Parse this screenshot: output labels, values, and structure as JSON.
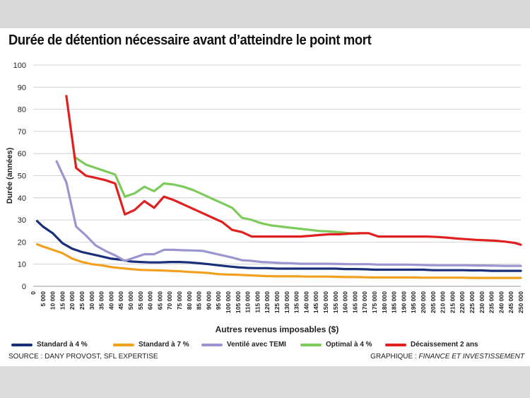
{
  "chart_data": {
    "type": "line",
    "title": "Durée de détention nécessaire avant d’atteindre le point mort",
    "xlabel": "Autres revenus imposables ($)",
    "ylabel": "Durée (années)",
    "ylim": [
      0,
      100
    ],
    "yticks": [
      0,
      10,
      20,
      30,
      40,
      50,
      60,
      70,
      80,
      90,
      100
    ],
    "xlim": [
      0,
      250000
    ],
    "xticks": [
      0,
      5000,
      10000,
      15000,
      20000,
      25000,
      30000,
      35000,
      40000,
      45000,
      50000,
      55000,
      60000,
      65000,
      70000,
      75000,
      80000,
      85000,
      90000,
      95000,
      100000,
      105000,
      110000,
      115000,
      120000,
      125000,
      130000,
      135000,
      140000,
      145000,
      150000,
      155000,
      160000,
      165000,
      170000,
      175000,
      180000,
      185000,
      190000,
      195000,
      200000,
      205000,
      210000,
      215000,
      220000,
      225000,
      230000,
      235000,
      240000,
      245000,
      250000
    ],
    "xtick_labels": [
      "0",
      "5 000",
      "10 000",
      "15 000",
      "20 000",
      "25 000",
      "30 000",
      "35 000",
      "40 000",
      "45 000",
      "50 000",
      "55 000",
      "60 000",
      "65 000",
      "70 000",
      "75 000",
      "80 000",
      "85 000",
      "90 000",
      "95 000",
      "100 000",
      "105 000",
      "110 000",
      "115 000",
      "120 000",
      "125 000",
      "130 000",
      "135 000",
      "140 000",
      "145 000",
      "150 000",
      "155 000",
      "160 000",
      "165 000",
      "170 000",
      "175 000",
      "180 000",
      "185 000",
      "190 000",
      "195 000",
      "200 000",
      "205 000",
      "210 000",
      "215 000",
      "220 000",
      "225 000",
      "230 000",
      "235 000",
      "240 000",
      "245 000",
      "250 000"
    ],
    "grid": true,
    "legend_position": "bottom",
    "series": [
      {
        "name": "Standard à 4 %",
        "color": "#1a2f7a",
        "points": [
          [
            2000,
            29.5
          ],
          [
            5000,
            27
          ],
          [
            10000,
            24
          ],
          [
            15000,
            19.5
          ],
          [
            20000,
            17
          ],
          [
            25000,
            15.5
          ],
          [
            30000,
            14.5
          ],
          [
            35000,
            13.5
          ],
          [
            40000,
            12.5
          ],
          [
            45000,
            12
          ],
          [
            50000,
            11.2
          ],
          [
            55000,
            11
          ],
          [
            60000,
            10.8
          ],
          [
            65000,
            10.8
          ],
          [
            70000,
            11
          ],
          [
            75000,
            11
          ],
          [
            80000,
            10.8
          ],
          [
            85000,
            10.4
          ],
          [
            90000,
            10
          ],
          [
            95000,
            9.5
          ],
          [
            100000,
            9
          ],
          [
            105000,
            8.6
          ],
          [
            110000,
            8.3
          ],
          [
            115000,
            8.2
          ],
          [
            120000,
            8.2
          ],
          [
            125000,
            8
          ],
          [
            130000,
            8
          ],
          [
            135000,
            8
          ],
          [
            140000,
            8
          ],
          [
            145000,
            8
          ],
          [
            150000,
            8
          ],
          [
            155000,
            8
          ],
          [
            160000,
            7.8
          ],
          [
            165000,
            7.8
          ],
          [
            170000,
            7.7
          ],
          [
            175000,
            7.5
          ],
          [
            180000,
            7.5
          ],
          [
            185000,
            7.5
          ],
          [
            190000,
            7.5
          ],
          [
            195000,
            7.5
          ],
          [
            200000,
            7.5
          ],
          [
            205000,
            7.3
          ],
          [
            210000,
            7.3
          ],
          [
            215000,
            7.3
          ],
          [
            220000,
            7.3
          ],
          [
            225000,
            7.2
          ],
          [
            230000,
            7.2
          ],
          [
            235000,
            7
          ],
          [
            240000,
            7
          ],
          [
            245000,
            7
          ],
          [
            250000,
            7
          ]
        ]
      },
      {
        "name": "Standard à 7 %",
        "color": "#f2a01f",
        "points": [
          [
            2000,
            19
          ],
          [
            5000,
            18
          ],
          [
            10000,
            16.5
          ],
          [
            15000,
            15
          ],
          [
            20000,
            12.5
          ],
          [
            25000,
            11
          ],
          [
            30000,
            10
          ],
          [
            35000,
            9.5
          ],
          [
            40000,
            8.7
          ],
          [
            45000,
            8.2
          ],
          [
            50000,
            7.8
          ],
          [
            55000,
            7.4
          ],
          [
            60000,
            7.3
          ],
          [
            65000,
            7.2
          ],
          [
            70000,
            7
          ],
          [
            75000,
            6.8
          ],
          [
            80000,
            6.5
          ],
          [
            85000,
            6.3
          ],
          [
            90000,
            6
          ],
          [
            95000,
            5.5
          ],
          [
            100000,
            5.3
          ],
          [
            105000,
            5.2
          ],
          [
            110000,
            5
          ],
          [
            115000,
            4.8
          ],
          [
            120000,
            4.6
          ],
          [
            125000,
            4.5
          ],
          [
            130000,
            4.5
          ],
          [
            135000,
            4.5
          ],
          [
            140000,
            4.4
          ],
          [
            145000,
            4.4
          ],
          [
            150000,
            4.4
          ],
          [
            155000,
            4.3
          ],
          [
            160000,
            4.2
          ],
          [
            165000,
            4.2
          ],
          [
            170000,
            4.1
          ],
          [
            175000,
            4
          ],
          [
            180000,
            4
          ],
          [
            185000,
            4
          ],
          [
            190000,
            4
          ],
          [
            195000,
            4
          ],
          [
            200000,
            3.9
          ],
          [
            205000,
            3.9
          ],
          [
            210000,
            3.9
          ],
          [
            215000,
            3.9
          ],
          [
            220000,
            3.9
          ],
          [
            225000,
            3.8
          ],
          [
            230000,
            3.8
          ],
          [
            235000,
            3.8
          ],
          [
            240000,
            3.8
          ],
          [
            245000,
            3.8
          ],
          [
            250000,
            3.8
          ]
        ]
      },
      {
        "name": "Ventilé avec TEMI",
        "color": "#9b96cf",
        "points": [
          [
            12000,
            56.5
          ],
          [
            17000,
            47
          ],
          [
            22000,
            27
          ],
          [
            27000,
            23
          ],
          [
            32000,
            18.5
          ],
          [
            37000,
            16
          ],
          [
            42000,
            14
          ],
          [
            47000,
            11.5
          ],
          [
            52000,
            13
          ],
          [
            57000,
            14.5
          ],
          [
            62000,
            14.5
          ],
          [
            67000,
            16.5
          ],
          [
            72000,
            16.5
          ],
          [
            77000,
            16.3
          ],
          [
            82000,
            16.2
          ],
          [
            87000,
            16
          ],
          [
            92000,
            15
          ],
          [
            97000,
            14
          ],
          [
            102000,
            13
          ],
          [
            107000,
            11.8
          ],
          [
            112000,
            11.5
          ],
          [
            117000,
            11
          ],
          [
            122000,
            10.8
          ],
          [
            127000,
            10.5
          ],
          [
            132000,
            10.4
          ],
          [
            137000,
            10.2
          ],
          [
            142000,
            10.2
          ],
          [
            147000,
            10.2
          ],
          [
            152000,
            10.2
          ],
          [
            157000,
            10.1
          ],
          [
            162000,
            10
          ],
          [
            167000,
            10
          ],
          [
            172000,
            10
          ],
          [
            177000,
            9.8
          ],
          [
            182000,
            9.8
          ],
          [
            187000,
            9.8
          ],
          [
            192000,
            9.8
          ],
          [
            197000,
            9.7
          ],
          [
            202000,
            9.6
          ],
          [
            207000,
            9.5
          ],
          [
            212000,
            9.5
          ],
          [
            217000,
            9.5
          ],
          [
            222000,
            9.5
          ],
          [
            227000,
            9.4
          ],
          [
            232000,
            9.4
          ],
          [
            237000,
            9.3
          ],
          [
            242000,
            9.2
          ],
          [
            247000,
            9.2
          ],
          [
            250000,
            9.2
          ]
        ]
      },
      {
        "name": "Optimal à 4 %",
        "color": "#7ecb5d",
        "points": [
          [
            22000,
            58
          ],
          [
            27000,
            55
          ],
          [
            32000,
            53.5
          ],
          [
            37000,
            52
          ],
          [
            42000,
            50.5
          ],
          [
            47000,
            40.5
          ],
          [
            52000,
            42
          ],
          [
            57000,
            45
          ],
          [
            62000,
            43
          ],
          [
            67000,
            46.5
          ],
          [
            72000,
            46
          ],
          [
            77000,
            45
          ],
          [
            82000,
            43.5
          ],
          [
            87000,
            41.5
          ],
          [
            92000,
            39.5
          ],
          [
            97000,
            37.5
          ],
          [
            102000,
            35.5
          ],
          [
            107000,
            31
          ],
          [
            112000,
            30
          ],
          [
            117000,
            28.5
          ],
          [
            122000,
            27.5
          ],
          [
            127000,
            27
          ],
          [
            132000,
            26.5
          ],
          [
            137000,
            26
          ],
          [
            142000,
            25.5
          ],
          [
            147000,
            25
          ],
          [
            152000,
            24.8
          ],
          [
            157000,
            24.5
          ],
          [
            162000,
            24
          ],
          [
            167000,
            23.8
          ]
        ]
      },
      {
        "name": "Décaissement 2 ans",
        "color": "#e02020",
        "points": [
          [
            17000,
            86
          ],
          [
            22000,
            53.5
          ],
          [
            27000,
            50
          ],
          [
            32000,
            49
          ],
          [
            37000,
            48
          ],
          [
            42000,
            46.5
          ],
          [
            47000,
            32.5
          ],
          [
            52000,
            34.5
          ],
          [
            57000,
            38.5
          ],
          [
            62000,
            35.5
          ],
          [
            67000,
            40.5
          ],
          [
            72000,
            39
          ],
          [
            77000,
            37
          ],
          [
            82000,
            35
          ],
          [
            87000,
            33
          ],
          [
            92000,
            31
          ],
          [
            97000,
            29
          ],
          [
            102000,
            25.5
          ],
          [
            107000,
            24.5
          ],
          [
            112000,
            22.5
          ],
          [
            117000,
            22.5
          ],
          [
            122000,
            22.5
          ],
          [
            127000,
            22.5
          ],
          [
            132000,
            22.5
          ],
          [
            137000,
            22.5
          ],
          [
            142000,
            22.8
          ],
          [
            147000,
            23.2
          ],
          [
            152000,
            23.5
          ],
          [
            157000,
            23.5
          ],
          [
            162000,
            23.8
          ],
          [
            167000,
            24
          ],
          [
            172000,
            24
          ],
          [
            177000,
            22.5
          ],
          [
            182000,
            22.5
          ],
          [
            187000,
            22.5
          ],
          [
            192000,
            22.5
          ],
          [
            197000,
            22.5
          ],
          [
            202000,
            22.5
          ],
          [
            207000,
            22.3
          ],
          [
            212000,
            22
          ],
          [
            217000,
            21.6
          ],
          [
            222000,
            21.3
          ],
          [
            227000,
            21
          ],
          [
            232000,
            20.8
          ],
          [
            237000,
            20.6
          ],
          [
            242000,
            20.2
          ],
          [
            247000,
            19.6
          ],
          [
            250000,
            18.8
          ]
        ]
      }
    ]
  },
  "source": "SOURCE : DANY PROVOST, SFL EXPERTISE",
  "credit_prefix": "GRAPHIQUE : ",
  "credit_name": "FINANCE ET INVESTISSEMENT"
}
